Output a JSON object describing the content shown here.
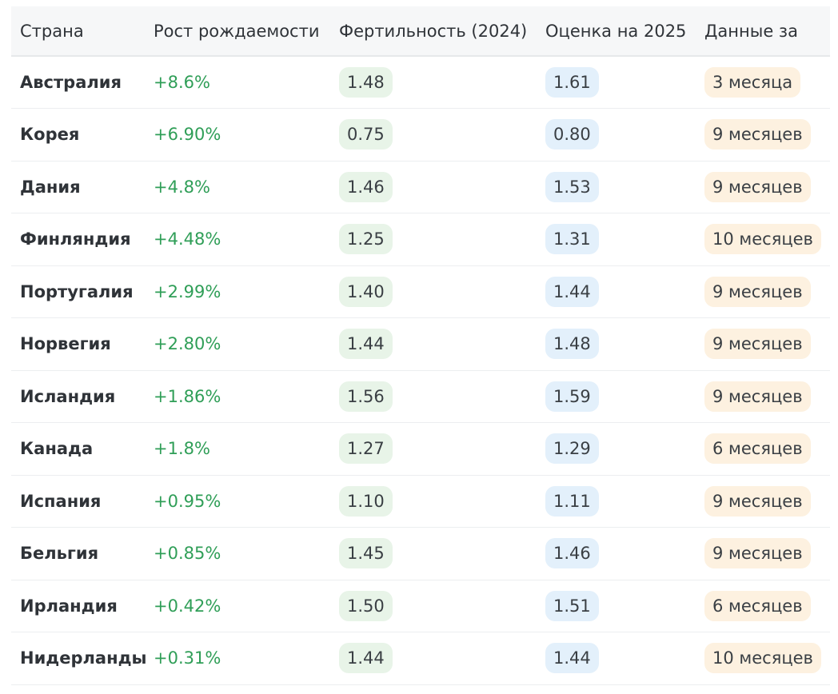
{
  "table": {
    "headers": [
      "Страна",
      "Рост рождаемости",
      "Фертильность (2024)",
      "Оценка на 2025",
      "Данные за"
    ],
    "rows": [
      {
        "country": "Австралия",
        "growth": "+8.6%",
        "fertility_2024": "1.48",
        "estimate_2025": "1.61",
        "period": "3 месяца"
      },
      {
        "country": "Корея",
        "growth": "+6.90%",
        "fertility_2024": "0.75",
        "estimate_2025": "0.80",
        "period": "9 месяцев"
      },
      {
        "country": "Дания",
        "growth": "+4.8%",
        "fertility_2024": "1.46",
        "estimate_2025": "1.53",
        "period": "9 месяцев"
      },
      {
        "country": "Финляндия",
        "growth": "+4.48%",
        "fertility_2024": "1.25",
        "estimate_2025": "1.31",
        "period": "10 месяцев"
      },
      {
        "country": "Португалия",
        "growth": "+2.99%",
        "fertility_2024": "1.40",
        "estimate_2025": "1.44",
        "period": "9 месяцев"
      },
      {
        "country": "Норвегия",
        "growth": "+2.80%",
        "fertility_2024": "1.44",
        "estimate_2025": "1.48",
        "period": "9 месяцев"
      },
      {
        "country": "Исландия",
        "growth": "+1.86%",
        "fertility_2024": "1.56",
        "estimate_2025": "1.59",
        "period": "9 месяцев"
      },
      {
        "country": "Канада",
        "growth": "+1.8%",
        "fertility_2024": "1.27",
        "estimate_2025": "1.29",
        "period": "6 месяцев"
      },
      {
        "country": "Испания",
        "growth": "+0.95%",
        "fertility_2024": "1.10",
        "estimate_2025": "1.11",
        "period": "9 месяцев"
      },
      {
        "country": "Бельгия",
        "growth": "+0.85%",
        "fertility_2024": "1.45",
        "estimate_2025": "1.46",
        "period": "9 месяцев"
      },
      {
        "country": "Ирландия",
        "growth": "+0.42%",
        "fertility_2024": "1.50",
        "estimate_2025": "1.51",
        "period": "6 месяцев"
      },
      {
        "country": "Нидерланды",
        "growth": "+0.31%",
        "fertility_2024": "1.44",
        "estimate_2025": "1.44",
        "period": "10 месяцев"
      }
    ]
  },
  "colors": {
    "growth_text": "#2f9e57",
    "fertility_pill": "#e8f4e8",
    "estimate_pill": "#e3f0fb",
    "period_pill": "#fdf1e0",
    "header_bg": "#f6f7f8"
  }
}
